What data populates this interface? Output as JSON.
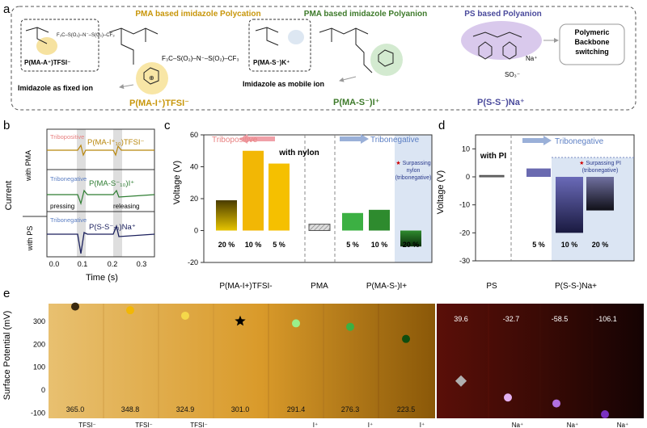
{
  "panel_a": {
    "label": "a",
    "polycation": {
      "title": "PMA based imidazole Polycation",
      "monomer_label": "P(MA-A⁺)TFSI⁻",
      "anion_formula": "F₃C–S(O₂)–N⁻–S(O₂)–CF₃",
      "note": "Imidazole as fixed ion",
      "polymer_name": "P(MA-I⁺)TFSI⁻"
    },
    "polyanion": {
      "title": "PMA based imidazole Polyanion",
      "monomer_label": "P(MA-S⁻)K⁺",
      "note": "Imidazole as mobile ion",
      "polymer_name": "P(MA-S⁻)I⁺"
    },
    "ps_polyanion": {
      "title": "PS based Polyanion",
      "counter_ion": "Na⁺",
      "switch_label": "Polymeric Backbone switching",
      "polymer_name": "P(S-S⁻)Na⁺"
    }
  },
  "panel_b": {
    "label": "b",
    "ylabel": "Current",
    "xlabel": "Time (s)",
    "xticks": [
      "0.0",
      "0.1",
      "0.2",
      "0.3"
    ],
    "group_pma": "with PMA",
    "group_ps": "with PS",
    "traces": [
      {
        "tag": "Tribopositive",
        "name": "P(MA-I⁺₁₀)TFSI⁻",
        "color": "#b8860b",
        "tag_color": "#e88080"
      },
      {
        "tag": "Tribonegative",
        "name": "P(MA-S⁻₁₀)I⁺",
        "color": "#2e7d32",
        "tag_color": "#5c7fc4"
      },
      {
        "tag": "Tribonegative",
        "name": "P(S-S⁻₁₀)Na⁺",
        "color": "#1a1f5c",
        "tag_color": "#5c7fc4"
      }
    ],
    "pressing": "pressing",
    "releasing": "releasing"
  },
  "panel_c": {
    "label": "c",
    "tribopositive": "Tribopositive",
    "tribonegative": "Tribonegative",
    "with_text": "with nylon",
    "surpass_note": "Surpassing nylon (tribonegative)",
    "group_labels": [
      "P(MA-I+)TFSI-",
      "PMA",
      "P(MA-S-)I+"
    ]
  },
  "panel_d": {
    "label": "d",
    "tribonegative": "Tribonegative",
    "with_text": "with PI",
    "surpass_note": "Surpassing PI (tribonegative)",
    "group_labels": [
      "PS",
      "P(S-S-)Na+"
    ]
  },
  "panel_e": {
    "label": "e",
    "ylabel": "Surface Potential (mV)",
    "yticks": [
      "300",
      "200",
      "100",
      "0",
      "-100"
    ],
    "left_values": [
      "365.0",
      "348.8",
      "324.9",
      "301.0",
      "291.4",
      "276.3",
      "223.5"
    ],
    "right_values": [
      "39.6",
      "-32.7",
      "-58.5",
      "-106.1"
    ],
    "bottom_labels": [
      "TFSI⁻",
      "TFSI⁻",
      "TFSI⁻",
      "I⁺",
      "I⁺",
      "I⁺",
      "Na⁺",
      "Na⁺",
      "Na⁺"
    ]
  },
  "chart_data": [
    {
      "type": "bar",
      "title": "c",
      "ylabel": "Voltage (V)",
      "ylim": [
        -20,
        60
      ],
      "yticks": [
        -20,
        0,
        20,
        40,
        60
      ],
      "categories": [
        "20 %",
        "10 %",
        "5 %",
        "PMA",
        "5 %",
        "10 %",
        "20 %"
      ],
      "values": [
        19,
        50,
        42,
        4,
        11,
        13,
        -10
      ],
      "colors": [
        "#3a3000",
        "#f2b705",
        "#f5c000",
        "#999999",
        "#3cb043",
        "#2e8b2e",
        "#0f3d0f"
      ]
    },
    {
      "type": "bar",
      "title": "d",
      "ylabel": "Voltage (V)",
      "ylim": [
        -30,
        15
      ],
      "yticks": [
        -30,
        -20,
        -10,
        0,
        10
      ],
      "categories": [
        "PS",
        "5 %",
        "10 %",
        "20 %"
      ],
      "values": [
        0.5,
        3,
        -20,
        -12
      ],
      "colors": [
        "#888888",
        "#6a6ab0",
        "#3a3a8c",
        "#20203a"
      ]
    },
    {
      "type": "scatter",
      "title": "e",
      "ylabel": "Surface Potential (mV)",
      "ylim": [
        -110,
        380
      ],
      "values": [
        365.0,
        348.8,
        324.9,
        301.0,
        291.4,
        276.3,
        223.5,
        39.6,
        -32.7,
        -58.5,
        -106.1
      ],
      "marker_colors": [
        "#3a2a10",
        "#f2b705",
        "#f5d84a",
        "#000000",
        "#9aef8a",
        "#3cb043",
        "#0f4d0f",
        "#b0b0b0",
        "#e3b0f0",
        "#b070e0",
        "#7a30c0"
      ]
    }
  ]
}
